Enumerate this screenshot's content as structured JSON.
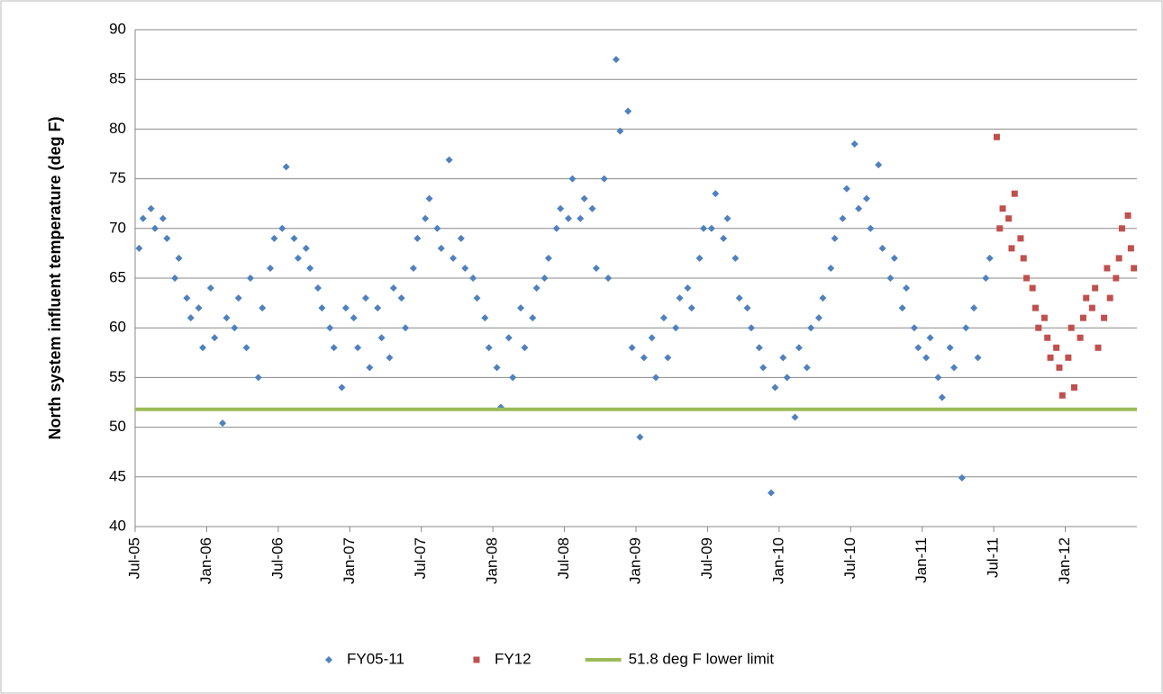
{
  "chart_data": {
    "type": "scatter",
    "y_label": "North system influent temperature (deg F)",
    "ylim": [
      40,
      90
    ],
    "yticks": [
      40,
      45,
      50,
      55,
      60,
      65,
      70,
      75,
      80,
      85,
      90
    ],
    "xlim": [
      "2005-07",
      "2012-06"
    ],
    "xticks": [
      {
        "value": "2005-07",
        "label": "Jul-05"
      },
      {
        "value": "2006-01",
        "label": "Jan-06"
      },
      {
        "value": "2006-07",
        "label": "Jul-06"
      },
      {
        "value": "2007-01",
        "label": "Jan-07"
      },
      {
        "value": "2007-07",
        "label": "Jul-07"
      },
      {
        "value": "2008-01",
        "label": "Jan-08"
      },
      {
        "value": "2008-07",
        "label": "Jul-08"
      },
      {
        "value": "2009-01",
        "label": "Jan-09"
      },
      {
        "value": "2009-07",
        "label": "Jul-09"
      },
      {
        "value": "2010-01",
        "label": "Jan-10"
      },
      {
        "value": "2010-07",
        "label": "Jul-10"
      },
      {
        "value": "2011-01",
        "label": "Jan-11"
      },
      {
        "value": "2011-07",
        "label": "Jul-11"
      },
      {
        "value": "2012-01",
        "label": "Jan-12"
      }
    ],
    "grid": true,
    "legend": "bottom",
    "series": [
      {
        "name": "FY05-11",
        "color": "#4f81bd",
        "marker": "diamond",
        "x": [
          "2005-07",
          "2005-07",
          "2005-08",
          "2005-08",
          "2005-09",
          "2005-09",
          "2005-10",
          "2005-10",
          "2005-11",
          "2005-11",
          "2005-12",
          "2005-12",
          "2006-01",
          "2006-01",
          "2006-02",
          "2006-02",
          "2006-03",
          "2006-03",
          "2006-04",
          "2006-04",
          "2006-05",
          "2006-05",
          "2006-06",
          "2006-06",
          "2006-07",
          "2006-07",
          "2006-08",
          "2006-08",
          "2006-09",
          "2006-09",
          "2006-10",
          "2006-10",
          "2006-11",
          "2006-11",
          "2006-12",
          "2006-12",
          "2007-01",
          "2007-01",
          "2007-02",
          "2007-02",
          "2007-03",
          "2007-03",
          "2007-04",
          "2007-04",
          "2007-05",
          "2007-05",
          "2007-06",
          "2007-06",
          "2007-07",
          "2007-07",
          "2007-08",
          "2007-08",
          "2007-09",
          "2007-09",
          "2007-10",
          "2007-10",
          "2007-11",
          "2007-11",
          "2007-12",
          "2007-12",
          "2008-01",
          "2008-01",
          "2008-02",
          "2008-02",
          "2008-03",
          "2008-03",
          "2008-04",
          "2008-04",
          "2008-05",
          "2008-05",
          "2008-06",
          "2008-06",
          "2008-07",
          "2008-07",
          "2008-08",
          "2008-08",
          "2008-09",
          "2008-09",
          "2008-10",
          "2008-10",
          "2008-11",
          "2008-11",
          "2008-12",
          "2008-12",
          "2009-01",
          "2009-01",
          "2009-02",
          "2009-02",
          "2009-03",
          "2009-03",
          "2009-04",
          "2009-04",
          "2009-05",
          "2009-05",
          "2009-06",
          "2009-06",
          "2009-07",
          "2009-07",
          "2009-08",
          "2009-08",
          "2009-09",
          "2009-09",
          "2009-10",
          "2009-10",
          "2009-11",
          "2009-11",
          "2009-12",
          "2009-12",
          "2010-01",
          "2010-01",
          "2010-02",
          "2010-02",
          "2010-03",
          "2010-03",
          "2010-04",
          "2010-04",
          "2010-05",
          "2010-05",
          "2010-06",
          "2010-06",
          "2010-07",
          "2010-07",
          "2010-08",
          "2010-08",
          "2010-09",
          "2010-09",
          "2010-10",
          "2010-10",
          "2010-11",
          "2010-11",
          "2010-12",
          "2010-12",
          "2011-01",
          "2011-01",
          "2011-02",
          "2011-02",
          "2011-03",
          "2011-03",
          "2011-04",
          "2011-04",
          "2011-05",
          "2011-05",
          "2011-06",
          "2011-06"
        ],
        "values": [
          68,
          71,
          72,
          70,
          71,
          69,
          65,
          67,
          63,
          61,
          62,
          58,
          64,
          59,
          50.4,
          61,
          60,
          63,
          58,
          65,
          55,
          62,
          66,
          69,
          70,
          76.2,
          69,
          67,
          68,
          66,
          64,
          62,
          60,
          58,
          54,
          62,
          61,
          58,
          63,
          56,
          62,
          59,
          57,
          64,
          63,
          60,
          66,
          69,
          71,
          73,
          70,
          68,
          76.9,
          67,
          69,
          66,
          65,
          63,
          61,
          58,
          56,
          52,
          59,
          55,
          62,
          58,
          61,
          64,
          65,
          67,
          70,
          72,
          71,
          75,
          71,
          73,
          72,
          66,
          75,
          65,
          87,
          79.8,
          81.8,
          58,
          49,
          57,
          59,
          55,
          61,
          57,
          60,
          63,
          64,
          62,
          67,
          70,
          70,
          73.5,
          69,
          71,
          67,
          63,
          62,
          60,
          58,
          56,
          43.4,
          54,
          57,
          55,
          51,
          58,
          56,
          60,
          61,
          63,
          66,
          69,
          71,
          74,
          78.5,
          72,
          73,
          70,
          76.4,
          68,
          65,
          67,
          62,
          64,
          60,
          58,
          57,
          59,
          55,
          53,
          58,
          56,
          44.9,
          60,
          62,
          57,
          65,
          67
        ]
      },
      {
        "name": "FY12",
        "color": "#c0504d",
        "marker": "square",
        "x": [
          "2011-07",
          "2011-07",
          "2011-07",
          "2011-08",
          "2011-08",
          "2011-08",
          "2011-09",
          "2011-09",
          "2011-09",
          "2011-10",
          "2011-10",
          "2011-10",
          "2011-11",
          "2011-11",
          "2011-11",
          "2011-12",
          "2011-12",
          "2011-12",
          "2012-01",
          "2012-01",
          "2012-01",
          "2012-02",
          "2012-02",
          "2012-02",
          "2012-03",
          "2012-03",
          "2012-03",
          "2012-04",
          "2012-04",
          "2012-04",
          "2012-05",
          "2012-05",
          "2012-05",
          "2012-06",
          "2012-06",
          "2012-06"
        ],
        "values": [
          79.2,
          70,
          72,
          71,
          68,
          73.5,
          69,
          67,
          65,
          64,
          62,
          60,
          61,
          59,
          57,
          58,
          56,
          53.2,
          57,
          60,
          54,
          59,
          61,
          63,
          62,
          64,
          58,
          61,
          66,
          63,
          65,
          67,
          70,
          71.3,
          68,
          66
        ]
      }
    ],
    "reference_lines": [
      {
        "name": "51.8 deg F lower limit",
        "value": 51.8,
        "color": "#9bbb59"
      }
    ]
  }
}
